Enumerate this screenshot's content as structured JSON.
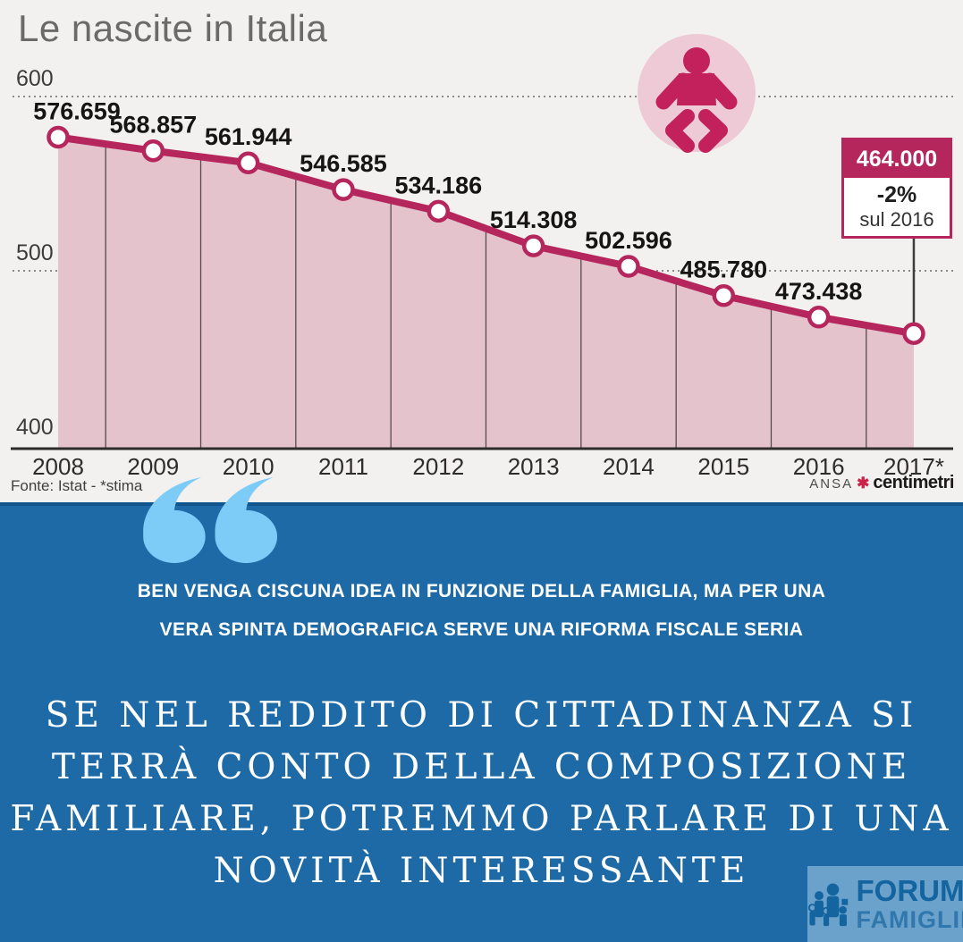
{
  "title": "Le nascite in Italia",
  "source": "Fonte: Istat  -  *stima",
  "credits": {
    "agency": "ANSA",
    "star": "✱",
    "brand": "centimetri"
  },
  "callout": {
    "value": "464.000",
    "change": "-2%",
    "reference": "sul 2016"
  },
  "icons": {
    "baby": "baby-icon",
    "quote": "double-quote-icon",
    "family": "family-figures-icon"
  },
  "colors": {
    "line": "#b5265d",
    "fill": "#e5c3cd",
    "chart_bg": "#f3f1ef",
    "blue_bg": "#1e6aa6",
    "blue_border": "#11568c",
    "quote_mark": "#7dcbf7",
    "baby_bg": "#edcad5",
    "baby_fg": "#c2215c",
    "callout_bg": "#b5265d",
    "credit_star": "#cc2247",
    "logo_text": "#1464a0"
  },
  "chart_data": {
    "type": "area",
    "title": "Le nascite in Italia",
    "categories": [
      "2008",
      "2009",
      "2010",
      "2011",
      "2012",
      "2013",
      "2014",
      "2015",
      "2016",
      "2017*"
    ],
    "values": [
      576.659,
      568.857,
      561.944,
      546.585,
      534.186,
      514.308,
      502.596,
      485.78,
      473.438,
      464.0
    ],
    "point_labels": [
      "576.659",
      "568.857",
      "561.944",
      "546.585",
      "534.186",
      "514.308",
      "502.596",
      "485.780",
      "473.438"
    ],
    "last_point": {
      "label": "464.000",
      "change": "-2%",
      "reference": "sul 2016",
      "category": "2017*"
    },
    "y_axis_unit": "thousands of births",
    "yticks": [
      {
        "label": "600",
        "value": 600,
        "dotted": true
      },
      {
        "label": "500",
        "value": 500,
        "dotted": true
      },
      {
        "label": "400",
        "value": 400,
        "dotted": false
      }
    ],
    "ylim": [
      400,
      600
    ],
    "grid": "dotted horizontal at 500 and 600, vertical year dividers",
    "legend": "none",
    "source": "Fonte: Istat - *stima"
  },
  "quote_small": {
    "line1": "BEN VENGA CISCUNA IDEA IN FUNZIONE DELLA FAMIGLIA, MA PER UNA",
    "line2": "VERA SPINTA DEMOGRAFICA SERVE UNA RIFORMA FISCALE SERIA"
  },
  "quote_large": {
    "line1": "SE NEL REDDITO DI CITTADINANZA SI",
    "line2": "TERRÀ CONTO DELLA COMPOSIZIONE",
    "line3": "FAMILIARE, POTREMMO PARLARE DI UNA",
    "line4": "NOVITÀ INTERESSANTE"
  },
  "logo": {
    "line1": "FORUM",
    "line2": "FAMIGLIE"
  }
}
